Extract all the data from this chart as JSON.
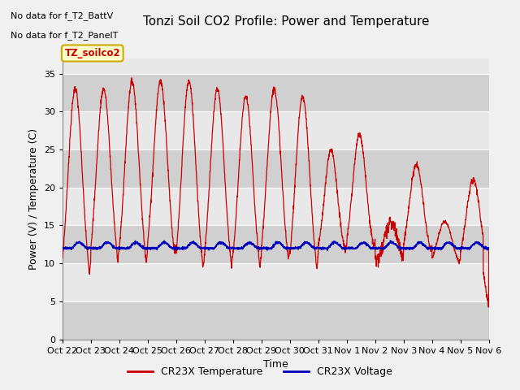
{
  "title": "Tonzi Soil CO2 Profile: Power and Temperature",
  "xlabel": "Time",
  "ylabel": "Power (V) / Temperature (C)",
  "ylim": [
    0,
    37
  ],
  "yticks": [
    0,
    5,
    10,
    15,
    20,
    25,
    30,
    35
  ],
  "xtick_labels": [
    "Oct 22",
    "Oct 23",
    "Oct 24",
    "Oct 25",
    "Oct 26",
    "Oct 27",
    "Oct 28",
    "Oct 29",
    "Oct 30",
    "Oct 31",
    "Nov 1",
    "Nov 2",
    "Nov 3",
    "Nov 4",
    "Nov 5",
    "Nov 6"
  ],
  "no_data_text1": "No data for f_T2_BattV",
  "no_data_text2": "No data for f_T2_PanelT",
  "box_label": "TZ_soilco2",
  "legend_items": [
    "CR23X Temperature",
    "CR23X Voltage"
  ],
  "legend_colors": [
    "#cc0000",
    "#0000bb"
  ],
  "temp_color": "#cc0000",
  "voltage_color": "#0000bb",
  "plot_bg_light": "#e8e8e8",
  "plot_bg_dark": "#d0d0d0",
  "fig_bg": "#f0f0f0",
  "title_fontsize": 11,
  "axis_fontsize": 9,
  "tick_fontsize": 8
}
